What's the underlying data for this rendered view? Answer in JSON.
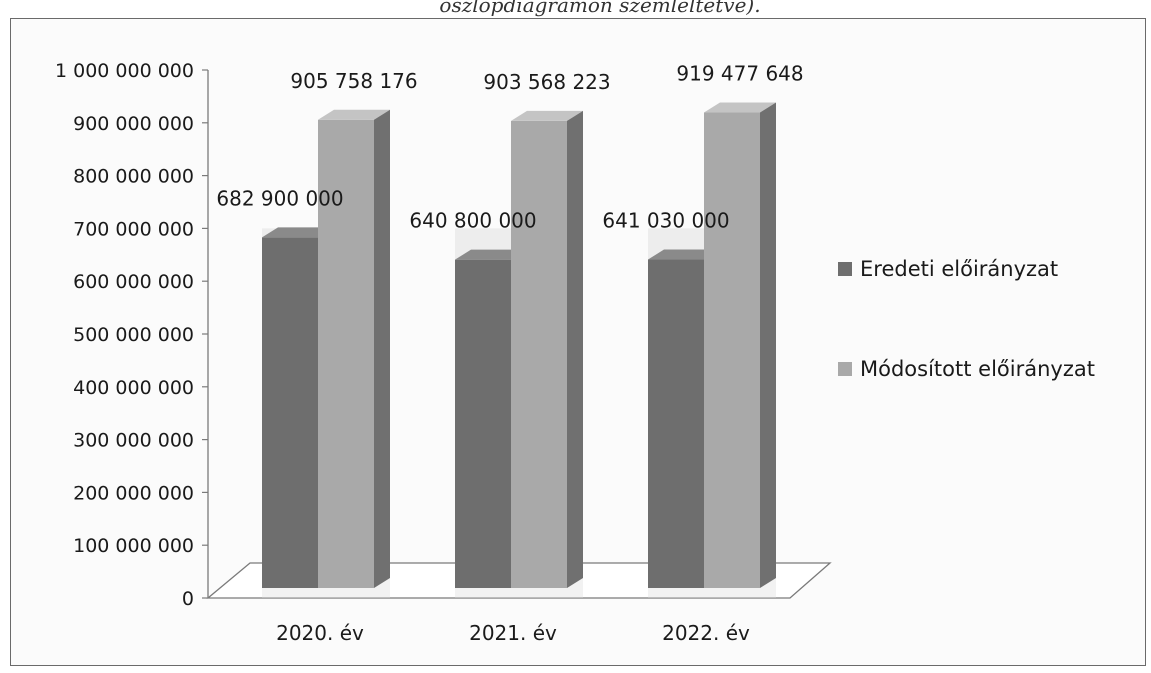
{
  "caption_fragment": "oszlopdiagramon szemléltetve).",
  "chart_data": {
    "type": "bar",
    "categories": [
      "2020. év",
      "2021. év",
      "2022. év"
    ],
    "series": [
      {
        "name": "Eredeti előirányzat",
        "values": [
          682900000,
          640800000,
          641030000
        ],
        "labels": [
          "682 900 000",
          "640 800 000",
          "641 030 000"
        ]
      },
      {
        "name": "Módosított előirányzat",
        "values": [
          905758176,
          903568223,
          919477648
        ],
        "labels": [
          "905 758 176",
          "903 568 223",
          "919 477 648"
        ]
      }
    ],
    "ylim": [
      0,
      1000000000
    ],
    "yticks": [
      0,
      100000000,
      200000000,
      300000000,
      400000000,
      500000000,
      600000000,
      700000000,
      800000000,
      900000000,
      1000000000
    ],
    "ytick_labels": [
      "0",
      "100 000 000",
      "200 000 000",
      "300 000 000",
      "400 000 000",
      "500 000 000",
      "600 000 000",
      "700 000 000",
      "800 000 000",
      "900 000 000",
      "1 000 000 000"
    ],
    "legend_position": "right",
    "grid": false,
    "three_d": true,
    "colors": {
      "series_a": "#6e6e6e",
      "series_b": "#a9a9a9"
    }
  }
}
